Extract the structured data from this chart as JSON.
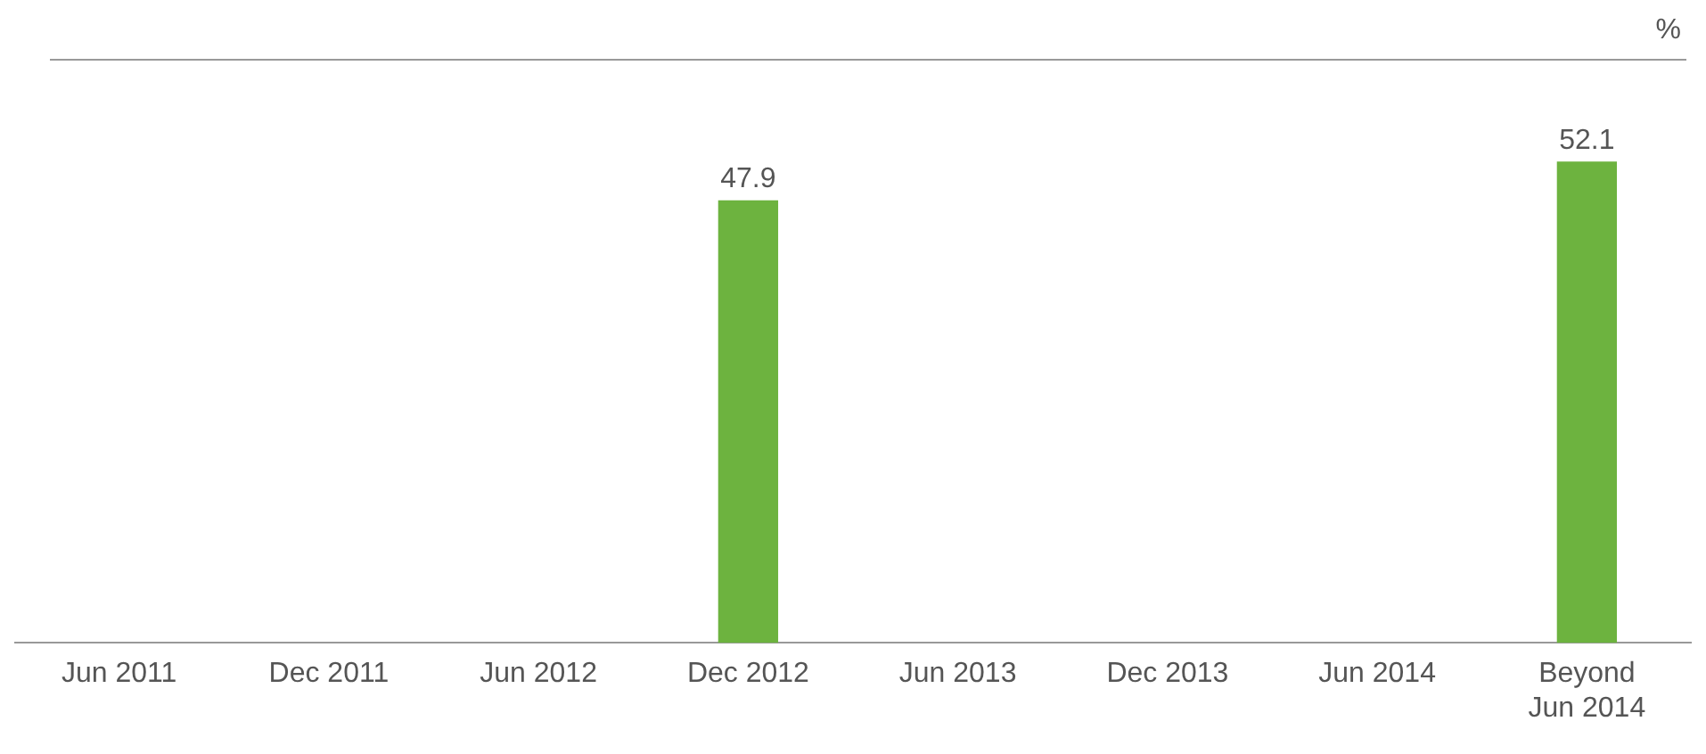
{
  "chart_data": {
    "type": "bar",
    "ylabel": "%",
    "categories": [
      "Jun 2011",
      "Dec 2011",
      "Jun 2012",
      "Dec 2012",
      "Jun 2013",
      "Dec 2013",
      "Jun 2014",
      "Beyond Jun 2014"
    ],
    "values": [
      null,
      null,
      null,
      47.9,
      null,
      null,
      null,
      52.1
    ],
    "color": "#6db33f",
    "data_labels": true,
    "grid": false,
    "legend": false
  }
}
